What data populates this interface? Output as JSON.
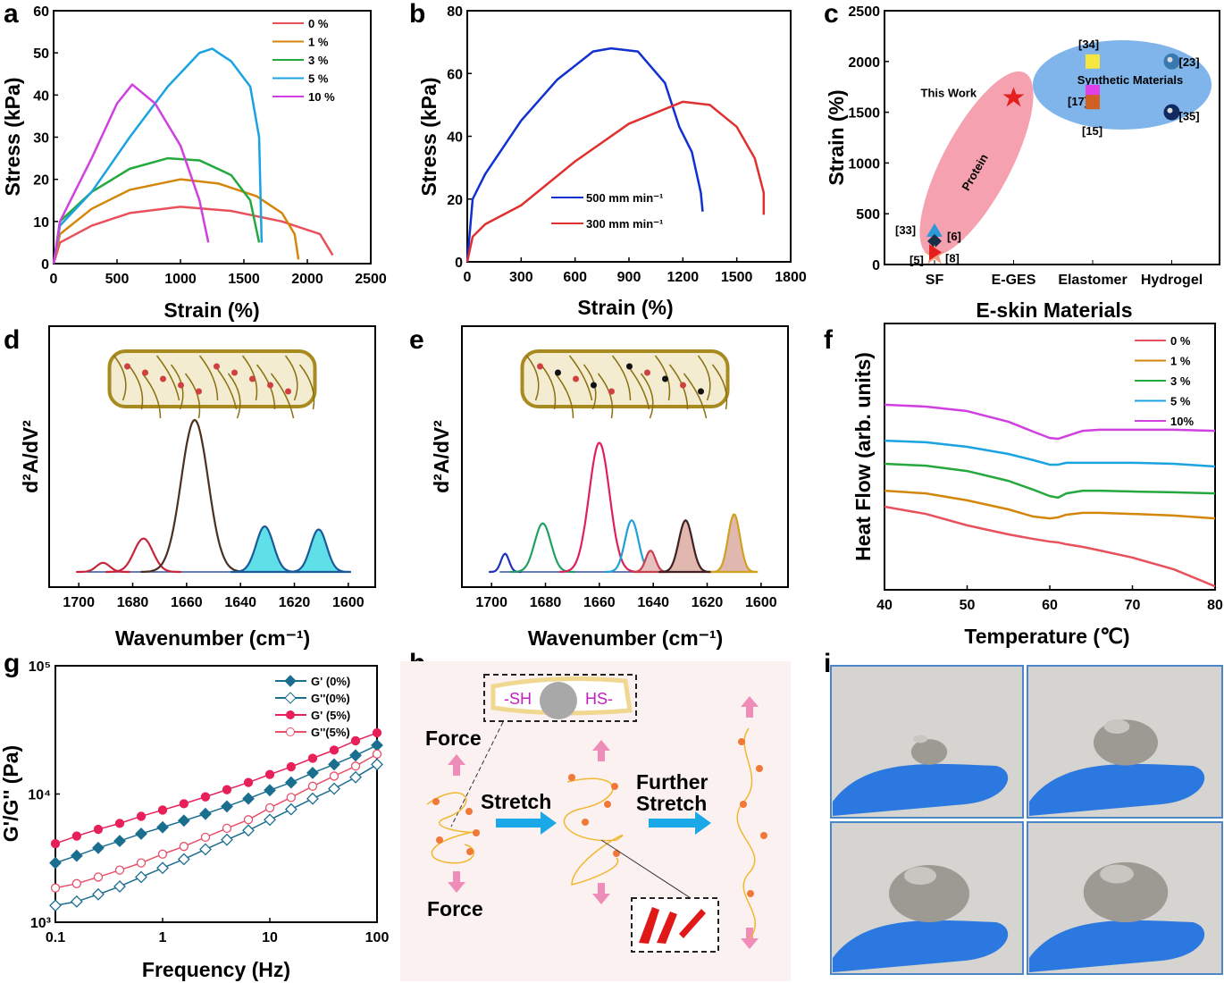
{
  "panel_labels": [
    "a",
    "b",
    "c",
    "d",
    "e",
    "f",
    "g",
    "h",
    "i"
  ],
  "chart_data": [
    {
      "id": "a",
      "type": "line",
      "xlabel": "Strain (%)",
      "ylabel": "Stress (kPa)",
      "xlim": [
        0,
        2500
      ],
      "ylim": [
        0,
        60
      ],
      "xticks": [
        "0",
        "500",
        "1000",
        "1500",
        "2000",
        "2500"
      ],
      "yticks": [
        "0",
        "10",
        "20",
        "30",
        "40",
        "50",
        "60"
      ],
      "legend": "top-right",
      "grid": false,
      "series": [
        {
          "name": "0 %",
          "color": "#e8505b",
          "x": [
            0,
            50,
            300,
            600,
            1000,
            1400,
            1800,
            2100,
            2200
          ],
          "y": [
            0,
            5,
            9,
            12,
            13.5,
            12.5,
            10,
            7,
            2
          ]
        },
        {
          "name": "1 %",
          "color": "#d4860b",
          "x": [
            0,
            50,
            300,
            600,
            1000,
            1300,
            1600,
            1800,
            1900,
            1930
          ],
          "y": [
            0,
            7,
            13,
            17.5,
            20,
            19,
            16,
            12,
            7,
            1
          ]
        },
        {
          "name": "3 %",
          "color": "#25a83e",
          "x": [
            0,
            50,
            300,
            600,
            900,
            1150,
            1400,
            1550,
            1620
          ],
          "y": [
            0,
            10,
            17,
            22.5,
            25,
            24.5,
            21,
            15,
            5
          ]
        },
        {
          "name": "5 %",
          "color": "#1aa3e0",
          "x": [
            0,
            50,
            300,
            600,
            900,
            1150,
            1250,
            1400,
            1550,
            1620,
            1640
          ],
          "y": [
            0,
            9,
            17,
            30,
            42,
            50,
            51,
            48,
            42,
            30,
            5
          ]
        },
        {
          "name": "10 %",
          "color": "#d040e0",
          "x": [
            0,
            50,
            300,
            500,
            620,
            800,
            1000,
            1150,
            1220
          ],
          "y": [
            0,
            10,
            25,
            38,
            42.5,
            38,
            28,
            15,
            5
          ]
        }
      ]
    },
    {
      "id": "b",
      "type": "line",
      "xlabel": "Strain (%)",
      "ylabel": "Stress (kPa)",
      "xlim": [
        0,
        1800
      ],
      "ylim": [
        0,
        80
      ],
      "xticks": [
        "0",
        "300",
        "600",
        "900",
        "1200",
        "1500",
        "1800"
      ],
      "yticks": [
        "0",
        "20",
        "40",
        "60",
        "80"
      ],
      "legend": "center",
      "grid": false,
      "series": [
        {
          "name": "500 mm min⁻¹",
          "color": "#1030d0",
          "x": [
            0,
            30,
            100,
            300,
            500,
            700,
            800,
            950,
            1100,
            1180,
            1250,
            1300,
            1310
          ],
          "y": [
            0,
            20,
            28,
            45,
            58,
            67,
            68,
            67,
            57,
            43,
            35,
            22,
            16
          ]
        },
        {
          "name": "300 mm min⁻¹",
          "color": "#e03030",
          "x": [
            0,
            30,
            100,
            300,
            600,
            900,
            1200,
            1350,
            1500,
            1600,
            1650,
            1650
          ],
          "y": [
            0,
            8,
            12,
            18,
            32,
            44,
            51,
            50,
            43,
            33,
            22,
            15
          ]
        }
      ]
    },
    {
      "id": "c",
      "type": "scatter",
      "xlabel": "E-skin Materials",
      "ylabel": "Strain (%)",
      "ylim": [
        0,
        2500
      ],
      "categories": [
        "SF",
        "E-GES",
        "Elastomer",
        "Hydrogel"
      ],
      "yticks": [
        "0",
        "500",
        "1000",
        "1500",
        "2000",
        "2500"
      ],
      "regions": [
        {
          "label": "Protein",
          "color": "#f48a9c"
        },
        {
          "label": "Synthetic Materials",
          "color": "#6aa8e8"
        }
      ],
      "points": [
        {
          "label": "This Work",
          "category": "E-GES",
          "y": 1650,
          "marker": "star",
          "color": "#e51e1e"
        },
        {
          "label": "[34]",
          "category": "Elastomer",
          "y": 2000,
          "marker": "square",
          "color": "#f5e642"
        },
        {
          "label": "[17]",
          "category": "Elastomer",
          "y": 1700,
          "marker": "square",
          "color": "#e040e8"
        },
        {
          "label": "[15]",
          "category": "Elastomer",
          "y": 1600,
          "marker": "square",
          "color": "#d06020"
        },
        {
          "label": "[23]",
          "category": "Hydrogel",
          "y": 2000,
          "marker": "sphere",
          "color": "#3a78b0"
        },
        {
          "label": "[35]",
          "category": "Hydrogel",
          "y": 1500,
          "marker": "sphere",
          "color": "#102a60"
        },
        {
          "label": "[33]",
          "category": "SF",
          "y": 300,
          "marker": "triangle",
          "color": "#2a9ad8"
        },
        {
          "label": "[6]",
          "category": "SF",
          "y": 230,
          "marker": "diamond",
          "color": "#1a2e48"
        },
        {
          "label": "[5]",
          "category": "SF",
          "y": 100,
          "marker": "star",
          "color": "#f0a080"
        },
        {
          "label": "[8]",
          "category": "SF",
          "y": 120,
          "marker": "triangle-right",
          "color": "#e51e1e"
        }
      ]
    },
    {
      "id": "d",
      "type": "area",
      "xlabel": "Wavenumber (cm⁻¹)",
      "ylabel": "d²A/dV²",
      "xlim": [
        1711,
        1590
      ],
      "xticks": [
        "1700",
        "1680",
        "1660",
        "1640",
        "1620",
        "1600"
      ],
      "peaks": [
        {
          "center": 1691,
          "height": 0.06,
          "width": 2.5,
          "color": "#c8243c",
          "fill": "none"
        },
        {
          "center": 1676,
          "height": 0.22,
          "width": 3.5,
          "color": "#c8243c",
          "fill": "none"
        },
        {
          "center": 1657,
          "height": 1.0,
          "width": 5,
          "color": "#4a3020",
          "fill": "none"
        },
        {
          "center": 1631,
          "height": 0.3,
          "width": 3.2,
          "color": "#1a5a9a",
          "fill": "#5fe0e8"
        },
        {
          "center": 1611,
          "height": 0.28,
          "width": 3,
          "color": "#1a5a9a",
          "fill": "#5fe0e8"
        }
      ]
    },
    {
      "id": "e",
      "type": "area",
      "xlabel": "Wavenumber (cm⁻¹)",
      "ylabel": "d²A/dV²",
      "xlim": [
        1711,
        1590
      ],
      "xticks": [
        "1700",
        "1680",
        "1660",
        "1640",
        "1620",
        "1600"
      ],
      "peaks": [
        {
          "center": 1695,
          "height": 0.12,
          "width": 1.5,
          "color": "#2030c0",
          "fill": "none"
        },
        {
          "center": 1681,
          "height": 0.32,
          "width": 3,
          "color": "#20a060",
          "fill": "none"
        },
        {
          "center": 1660,
          "height": 0.85,
          "width": 3.8,
          "color": "#e0205a",
          "fill": "none"
        },
        {
          "center": 1648,
          "height": 0.34,
          "width": 2.5,
          "color": "#20a0d8",
          "fill": "none"
        },
        {
          "center": 1641,
          "height": 0.14,
          "width": 1.8,
          "color": "#c84050",
          "fill": "#e8c0c0"
        },
        {
          "center": 1628,
          "height": 0.34,
          "width": 2.5,
          "color": "#402020",
          "fill": "#e0b8b0"
        },
        {
          "center": 1610,
          "height": 0.38,
          "width": 2.2,
          "color": "#d0a020",
          "fill": "#e0b8b0"
        }
      ]
    },
    {
      "id": "f",
      "type": "line",
      "xlabel": "Temperature (℃)",
      "ylabel": "Heat Flow (arb. units)",
      "xlim": [
        40,
        80
      ],
      "ylim": [
        0,
        1
      ],
      "xticks": [
        "40",
        "50",
        "60",
        "70",
        "80"
      ],
      "legend": "top-right",
      "series": [
        {
          "name": "0 %",
          "color": "#e8505b",
          "x": [
            40,
            45,
            50,
            55,
            58,
            60,
            61,
            62,
            64,
            66,
            70,
            75,
            80
          ],
          "y": [
            0.312,
            0.285,
            0.242,
            0.208,
            0.191,
            0.181,
            0.178,
            0.171,
            0.161,
            0.148,
            0.121,
            0.077,
            0.013
          ]
        },
        {
          "name": "1 %",
          "color": "#d4860b",
          "x": [
            40,
            45,
            50,
            55,
            58,
            60,
            61,
            62,
            64,
            66,
            70,
            75,
            80
          ],
          "y": [
            0.372,
            0.362,
            0.336,
            0.302,
            0.275,
            0.268,
            0.272,
            0.282,
            0.289,
            0.289,
            0.285,
            0.279,
            0.268
          ]
        },
        {
          "name": "3 %",
          "color": "#25a83e",
          "x": [
            40,
            45,
            50,
            55,
            58,
            60,
            61,
            62,
            64,
            66,
            70,
            75,
            80
          ],
          "y": [
            0.473,
            0.466,
            0.446,
            0.409,
            0.376,
            0.352,
            0.346,
            0.362,
            0.372,
            0.372,
            0.369,
            0.366,
            0.362
          ]
        },
        {
          "name": "5 %",
          "color": "#1aa3e0",
          "x": [
            40,
            45,
            50,
            55,
            58,
            60,
            61,
            62,
            64,
            66,
            70,
            75,
            80
          ],
          "y": [
            0.56,
            0.554,
            0.537,
            0.51,
            0.487,
            0.47,
            0.47,
            0.477,
            0.477,
            0.477,
            0.477,
            0.473,
            0.463
          ]
        },
        {
          "name": "10%",
          "color": "#d040e0",
          "x": [
            40,
            45,
            50,
            55,
            58,
            60,
            61,
            62,
            64,
            66,
            70,
            75,
            80
          ],
          "y": [
            0.695,
            0.688,
            0.671,
            0.631,
            0.594,
            0.57,
            0.567,
            0.577,
            0.597,
            0.601,
            0.601,
            0.601,
            0.597
          ]
        }
      ]
    },
    {
      "id": "g",
      "type": "line",
      "xlabel": "Frequency (Hz)",
      "ylabel": "G'/G'' (Pa)",
      "xscale": "log",
      "yscale": "log",
      "xlim": [
        0.1,
        100
      ],
      "ylim": [
        1000,
        100000
      ],
      "xticks": [
        "0.1",
        "1",
        "10",
        "100"
      ],
      "yticks": [
        "10³",
        "10⁴",
        "10⁵"
      ],
      "legend": "top-right",
      "x": [
        0.1,
        0.158,
        0.251,
        0.398,
        0.631,
        1,
        1.58,
        2.51,
        3.98,
        6.31,
        10,
        15.8,
        25.1,
        39.8,
        63.1,
        100
      ],
      "series": [
        {
          "name": "G' (0%)",
          "color": "#1a6e8e",
          "marker": "diamond-filled",
          "y": [
            2900,
            3300,
            3800,
            4300,
            4900,
            5500,
            6200,
            7000,
            8000,
            9200,
            10700,
            12300,
            14600,
            17000,
            20000,
            24000
          ]
        },
        {
          "name": "G''(0%)",
          "color": "#1a6e8e",
          "marker": "diamond-open",
          "y": [
            1350,
            1450,
            1650,
            1900,
            2250,
            2650,
            3100,
            3700,
            4400,
            5200,
            6300,
            7600,
            9200,
            11000,
            13500,
            17000
          ]
        },
        {
          "name": "G' (5%)",
          "color": "#e8205a",
          "marker": "circle-filled",
          "y": [
            4100,
            4700,
            5300,
            5900,
            6700,
            7500,
            8400,
            9500,
            10800,
            12300,
            14200,
            16300,
            19000,
            22000,
            26000,
            30000
          ]
        },
        {
          "name": "G''(5%)",
          "color": "#e8506a",
          "marker": "circle-open",
          "y": [
            1850,
            2000,
            2250,
            2550,
            2900,
            3400,
            3900,
            4600,
            5400,
            6300,
            7800,
            9400,
            11500,
            13800,
            16500,
            20500
          ]
        }
      ]
    }
  ],
  "schematic_h": {
    "force_top": "Force",
    "force_bottom": "Force",
    "stretch": "Stretch",
    "further_stretch_1": "Further",
    "further_stretch_2": "Stretch",
    "thiol_left": "-SH",
    "thiol_right": "HS-"
  },
  "photos_i": {
    "count": 4,
    "glove_color": "#2a78e0"
  }
}
